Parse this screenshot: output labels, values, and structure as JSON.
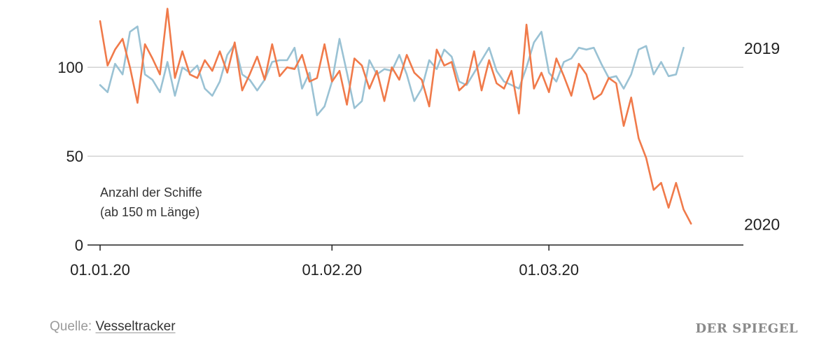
{
  "chart_data": {
    "type": "line",
    "annotation": [
      "Anzahl der Schiffe",
      "(ab 150 m Länge)"
    ],
    "xlim": [
      "2020-01-01",
      "2020-03-27"
    ],
    "ylim": [
      0,
      130
    ],
    "y_ticks": [
      0,
      50,
      100
    ],
    "x_ticks": [
      {
        "date": "2020-01-01",
        "label": "01.01.20"
      },
      {
        "date": "2020-02-01",
        "label": "01.02.20"
      },
      {
        "date": "2020-03-01",
        "label": "01.03.20"
      }
    ],
    "grid": true,
    "x_start": "2020-01-01",
    "series": [
      {
        "name": "2019",
        "color": "#9ac2d4",
        "values": [
          90,
          86,
          102,
          96,
          120,
          123,
          96,
          93,
          86,
          103,
          84,
          100,
          97,
          101,
          88,
          84,
          92,
          107,
          113,
          96,
          93,
          87,
          93,
          103,
          104,
          104,
          111,
          88,
          97,
          73,
          78,
          92,
          116,
          97,
          77,
          81,
          104,
          96,
          99,
          98,
          107,
          96,
          81,
          88,
          104,
          99,
          110,
          106,
          92,
          90,
          97,
          104,
          111,
          98,
          92,
          90,
          88,
          100,
          114,
          120,
          97,
          92,
          103,
          105,
          111,
          110,
          111,
          102,
          94,
          95,
          88,
          96,
          110,
          112,
          96,
          103,
          95,
          96,
          111
        ],
        "label": "2019"
      },
      {
        "name": "2020",
        "color": "#f07a4a",
        "values": [
          126,
          101,
          110,
          116,
          100,
          80,
          113,
          105,
          96,
          133,
          94,
          109,
          96,
          94,
          104,
          98,
          109,
          97,
          114,
          87,
          96,
          106,
          93,
          113,
          95,
          100,
          99,
          107,
          92,
          94,
          113,
          92,
          98,
          79,
          105,
          101,
          88,
          98,
          81,
          100,
          93,
          107,
          97,
          93,
          78,
          110,
          101,
          103,
          87,
          91,
          109,
          87,
          104,
          91,
          88,
          98,
          74,
          124,
          88,
          97,
          86,
          105,
          95,
          84,
          102,
          96,
          82,
          85,
          94,
          91,
          67,
          83,
          60,
          49,
          31,
          35,
          21,
          35,
          20,
          12
        ],
        "label": "2020"
      }
    ]
  },
  "source": {
    "label": "Quelle:",
    "name": "Vesseltracker"
  },
  "logo": "DER SPIEGEL"
}
